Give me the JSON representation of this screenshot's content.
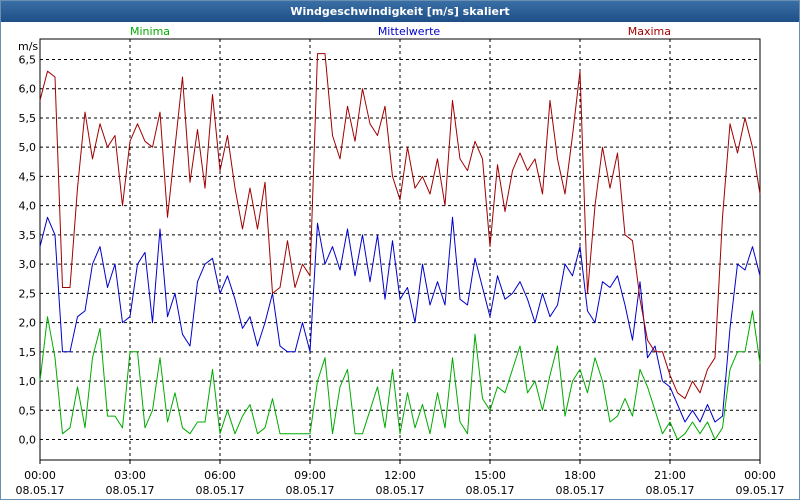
{
  "window": {
    "title": "Windgeschwindigkeit [m/s] skaliert"
  },
  "colors": {
    "min": "#00aa00",
    "mean": "#0000cc",
    "max": "#a00000",
    "grid": "#000000",
    "titlebar": "#2b5f97"
  },
  "chart_data": {
    "type": "line",
    "ylabel": "m/s",
    "ylim": [
      -0.35,
      6.85
    ],
    "yticks": [
      "0,0",
      "0,5",
      "1,0",
      "1,5",
      "2,0",
      "2,5",
      "3,0",
      "3,5",
      "4,0",
      "4,5",
      "5,0",
      "5,5",
      "6,0",
      "6,5"
    ],
    "xlim": [
      0,
      24
    ],
    "xticks": [
      {
        "time": "00:00",
        "date": "08.05.17"
      },
      {
        "time": "03:00",
        "date": "08.05.17"
      },
      {
        "time": "06:00",
        "date": "08.05.17"
      },
      {
        "time": "09:00",
        "date": "08.05.17"
      },
      {
        "time": "12:00",
        "date": "08.05.17"
      },
      {
        "time": "15:00",
        "date": "08.05.17"
      },
      {
        "time": "18:00",
        "date": "08.05.17"
      },
      {
        "time": "21:00",
        "date": "08.05.17"
      },
      {
        "time": "00:00",
        "date": "09.05.17"
      }
    ],
    "grid": true,
    "series": [
      {
        "name": "Minima",
        "key": "min",
        "points": [
          [
            0,
            1.0
          ],
          [
            0.25,
            2.1
          ],
          [
            0.5,
            1.4
          ],
          [
            0.75,
            0.1
          ],
          [
            1.0,
            0.2
          ],
          [
            1.25,
            0.9
          ],
          [
            1.5,
            0.2
          ],
          [
            1.75,
            1.4
          ],
          [
            2.0,
            1.9
          ],
          [
            2.25,
            0.4
          ],
          [
            2.5,
            0.4
          ],
          [
            2.75,
            0.2
          ],
          [
            3.0,
            1.5
          ],
          [
            3.25,
            1.5
          ],
          [
            3.5,
            0.2
          ],
          [
            3.75,
            0.5
          ],
          [
            4.0,
            1.4
          ],
          [
            4.25,
            0.3
          ],
          [
            4.5,
            0.8
          ],
          [
            4.75,
            0.2
          ],
          [
            5.0,
            0.1
          ],
          [
            5.25,
            0.3
          ],
          [
            5.5,
            0.3
          ],
          [
            5.75,
            1.2
          ],
          [
            6.0,
            0.1
          ],
          [
            6.25,
            0.5
          ],
          [
            6.5,
            0.1
          ],
          [
            6.75,
            0.4
          ],
          [
            7.0,
            0.6
          ],
          [
            7.25,
            0.1
          ],
          [
            7.5,
            0.2
          ],
          [
            7.75,
            0.7
          ],
          [
            8.0,
            0.1
          ],
          [
            8.25,
            0.1
          ],
          [
            8.5,
            0.1
          ],
          [
            8.75,
            0.1
          ],
          [
            9.0,
            0.1
          ],
          [
            9.25,
            1.0
          ],
          [
            9.5,
            1.4
          ],
          [
            9.75,
            0.1
          ],
          [
            10.0,
            0.9
          ],
          [
            10.25,
            1.2
          ],
          [
            10.5,
            0.1
          ],
          [
            10.75,
            0.1
          ],
          [
            11.0,
            0.5
          ],
          [
            11.25,
            0.9
          ],
          [
            11.5,
            0.2
          ],
          [
            11.75,
            1.2
          ],
          [
            12.0,
            0.1
          ],
          [
            12.25,
            0.8
          ],
          [
            12.5,
            0.2
          ],
          [
            12.75,
            0.6
          ],
          [
            13.0,
            0.1
          ],
          [
            13.25,
            0.8
          ],
          [
            13.5,
            0.2
          ],
          [
            13.75,
            1.4
          ],
          [
            14.0,
            0.3
          ],
          [
            14.25,
            0.1
          ],
          [
            14.5,
            1.8
          ],
          [
            14.75,
            0.7
          ],
          [
            15.0,
            0.5
          ],
          [
            15.25,
            0.9
          ],
          [
            15.5,
            0.8
          ],
          [
            15.75,
            1.2
          ],
          [
            16.0,
            1.6
          ],
          [
            16.25,
            0.8
          ],
          [
            16.5,
            1.0
          ],
          [
            16.75,
            0.5
          ],
          [
            17.0,
            1.1
          ],
          [
            17.25,
            1.6
          ],
          [
            17.5,
            0.4
          ],
          [
            17.75,
            1.0
          ],
          [
            18.0,
            1.2
          ],
          [
            18.25,
            0.8
          ],
          [
            18.5,
            1.4
          ],
          [
            18.75,
            1.0
          ],
          [
            19.0,
            0.3
          ],
          [
            19.25,
            0.4
          ],
          [
            19.5,
            0.7
          ],
          [
            19.75,
            0.4
          ],
          [
            20.0,
            1.2
          ],
          [
            20.25,
            0.9
          ],
          [
            20.5,
            0.5
          ],
          [
            20.75,
            0.1
          ],
          [
            21.0,
            0.3
          ],
          [
            21.25,
            0.0
          ],
          [
            21.5,
            0.1
          ],
          [
            21.75,
            0.3
          ],
          [
            22.0,
            0.1
          ],
          [
            22.25,
            0.3
          ],
          [
            22.5,
            0.0
          ],
          [
            22.75,
            0.2
          ],
          [
            23.0,
            1.2
          ],
          [
            23.25,
            1.5
          ],
          [
            23.5,
            1.5
          ],
          [
            23.75,
            2.2
          ],
          [
            24.0,
            1.3
          ]
        ]
      },
      {
        "name": "Mittelwerte",
        "key": "mean",
        "points": [
          [
            0,
            3.3
          ],
          [
            0.25,
            3.8
          ],
          [
            0.5,
            3.5
          ],
          [
            0.75,
            1.5
          ],
          [
            1.0,
            1.5
          ],
          [
            1.25,
            2.1
          ],
          [
            1.5,
            2.2
          ],
          [
            1.75,
            3.0
          ],
          [
            2.0,
            3.3
          ],
          [
            2.25,
            2.6
          ],
          [
            2.5,
            3.0
          ],
          [
            2.75,
            2.0
          ],
          [
            3.0,
            2.1
          ],
          [
            3.25,
            3.0
          ],
          [
            3.5,
            3.2
          ],
          [
            3.75,
            2.0
          ],
          [
            4.0,
            3.6
          ],
          [
            4.25,
            2.1
          ],
          [
            4.5,
            2.5
          ],
          [
            4.75,
            1.8
          ],
          [
            5.0,
            1.6
          ],
          [
            5.25,
            2.7
          ],
          [
            5.5,
            3.0
          ],
          [
            5.75,
            3.1
          ],
          [
            6.0,
            2.5
          ],
          [
            6.25,
            2.8
          ],
          [
            6.5,
            2.4
          ],
          [
            6.75,
            1.9
          ],
          [
            7.0,
            2.1
          ],
          [
            7.25,
            1.6
          ],
          [
            7.5,
            2.0
          ],
          [
            7.75,
            2.5
          ],
          [
            8.0,
            1.6
          ],
          [
            8.25,
            1.5
          ],
          [
            8.5,
            1.5
          ],
          [
            8.75,
            2.0
          ],
          [
            9.0,
            1.5
          ],
          [
            9.25,
            3.7
          ],
          [
            9.5,
            3.0
          ],
          [
            9.75,
            3.3
          ],
          [
            10.0,
            2.9
          ],
          [
            10.25,
            3.6
          ],
          [
            10.5,
            2.8
          ],
          [
            10.75,
            3.5
          ],
          [
            11.0,
            2.7
          ],
          [
            11.25,
            3.5
          ],
          [
            11.5,
            2.4
          ],
          [
            11.75,
            3.4
          ],
          [
            12.0,
            2.4
          ],
          [
            12.25,
            2.6
          ],
          [
            12.5,
            2.0
          ],
          [
            12.75,
            3.0
          ],
          [
            13.0,
            2.3
          ],
          [
            13.25,
            2.7
          ],
          [
            13.5,
            2.3
          ],
          [
            13.75,
            3.8
          ],
          [
            14.0,
            2.4
          ],
          [
            14.25,
            2.3
          ],
          [
            14.5,
            3.1
          ],
          [
            14.75,
            2.6
          ],
          [
            15.0,
            2.1
          ],
          [
            15.25,
            2.8
          ],
          [
            15.5,
            2.4
          ],
          [
            15.75,
            2.5
          ],
          [
            16.0,
            2.7
          ],
          [
            16.25,
            2.4
          ],
          [
            16.5,
            2.0
          ],
          [
            16.75,
            2.5
          ],
          [
            17.0,
            2.1
          ],
          [
            17.25,
            2.3
          ],
          [
            17.5,
            3.0
          ],
          [
            17.75,
            2.8
          ],
          [
            18.0,
            3.3
          ],
          [
            18.25,
            2.2
          ],
          [
            18.5,
            2.0
          ],
          [
            18.75,
            2.7
          ],
          [
            19.0,
            2.6
          ],
          [
            19.25,
            2.8
          ],
          [
            19.5,
            2.3
          ],
          [
            19.75,
            1.7
          ],
          [
            20.0,
            2.7
          ],
          [
            20.25,
            1.4
          ],
          [
            20.5,
            1.6
          ],
          [
            20.75,
            1.0
          ],
          [
            21.0,
            0.9
          ],
          [
            21.25,
            0.6
          ],
          [
            21.5,
            0.3
          ],
          [
            21.75,
            0.5
          ],
          [
            22.0,
            0.3
          ],
          [
            22.25,
            0.6
          ],
          [
            22.5,
            0.3
          ],
          [
            22.75,
            0.4
          ],
          [
            23.0,
            1.9
          ],
          [
            23.25,
            3.0
          ],
          [
            23.5,
            2.9
          ],
          [
            23.75,
            3.3
          ],
          [
            24.0,
            2.8
          ]
        ]
      },
      {
        "name": "Maxima",
        "key": "max",
        "points": [
          [
            0,
            5.8
          ],
          [
            0.25,
            6.3
          ],
          [
            0.5,
            6.2
          ],
          [
            0.75,
            2.6
          ],
          [
            1.0,
            2.6
          ],
          [
            1.25,
            4.3
          ],
          [
            1.5,
            5.6
          ],
          [
            1.75,
            4.8
          ],
          [
            2.0,
            5.4
          ],
          [
            2.25,
            5.0
          ],
          [
            2.5,
            5.2
          ],
          [
            2.75,
            4.0
          ],
          [
            3.0,
            5.1
          ],
          [
            3.25,
            5.4
          ],
          [
            3.5,
            5.1
          ],
          [
            3.75,
            5.0
          ],
          [
            4.0,
            5.6
          ],
          [
            4.25,
            3.8
          ],
          [
            4.5,
            5.0
          ],
          [
            4.75,
            6.2
          ],
          [
            5.0,
            4.4
          ],
          [
            5.25,
            5.3
          ],
          [
            5.5,
            4.3
          ],
          [
            5.75,
            5.9
          ],
          [
            6.0,
            4.6
          ],
          [
            6.25,
            5.2
          ],
          [
            6.5,
            4.3
          ],
          [
            6.75,
            3.6
          ],
          [
            7.0,
            4.3
          ],
          [
            7.25,
            3.6
          ],
          [
            7.5,
            4.4
          ],
          [
            7.75,
            2.5
          ],
          [
            8.0,
            2.6
          ],
          [
            8.25,
            3.4
          ],
          [
            8.5,
            2.6
          ],
          [
            8.75,
            3.0
          ],
          [
            9.0,
            2.8
          ],
          [
            9.25,
            6.6
          ],
          [
            9.5,
            6.6
          ],
          [
            9.75,
            5.2
          ],
          [
            10.0,
            4.8
          ],
          [
            10.25,
            5.7
          ],
          [
            10.5,
            5.1
          ],
          [
            10.75,
            6.0
          ],
          [
            11.0,
            5.4
          ],
          [
            11.25,
            5.2
          ],
          [
            11.5,
            5.7
          ],
          [
            11.75,
            4.5
          ],
          [
            12.0,
            4.1
          ],
          [
            12.25,
            5.0
          ],
          [
            12.5,
            4.3
          ],
          [
            12.75,
            4.5
          ],
          [
            13.0,
            4.2
          ],
          [
            13.25,
            4.8
          ],
          [
            13.5,
            4.0
          ],
          [
            13.75,
            5.8
          ],
          [
            14.0,
            4.8
          ],
          [
            14.25,
            4.6
          ],
          [
            14.5,
            5.1
          ],
          [
            14.75,
            4.8
          ],
          [
            15.0,
            3.3
          ],
          [
            15.25,
            4.7
          ],
          [
            15.5,
            3.9
          ],
          [
            15.75,
            4.6
          ],
          [
            16.0,
            4.9
          ],
          [
            16.25,
            4.6
          ],
          [
            16.5,
            4.8
          ],
          [
            16.75,
            4.2
          ],
          [
            17.0,
            5.8
          ],
          [
            17.25,
            4.8
          ],
          [
            17.5,
            4.2
          ],
          [
            17.75,
            5.2
          ],
          [
            18.0,
            6.3
          ],
          [
            18.25,
            2.5
          ],
          [
            18.5,
            4.0
          ],
          [
            18.75,
            5.0
          ],
          [
            19.0,
            4.3
          ],
          [
            19.25,
            4.9
          ],
          [
            19.5,
            3.5
          ],
          [
            19.75,
            3.4
          ],
          [
            20.0,
            2.4
          ],
          [
            20.25,
            1.7
          ],
          [
            20.5,
            1.5
          ],
          [
            20.75,
            1.5
          ],
          [
            21.0,
            1.1
          ],
          [
            21.25,
            0.8
          ],
          [
            21.5,
            0.7
          ],
          [
            21.75,
            1.0
          ],
          [
            22.0,
            0.8
          ],
          [
            22.25,
            1.2
          ],
          [
            22.5,
            1.4
          ],
          [
            22.75,
            3.8
          ],
          [
            23.0,
            5.4
          ],
          [
            23.25,
            4.9
          ],
          [
            23.5,
            5.5
          ],
          [
            23.75,
            5.0
          ],
          [
            24.0,
            4.2
          ]
        ]
      }
    ]
  }
}
